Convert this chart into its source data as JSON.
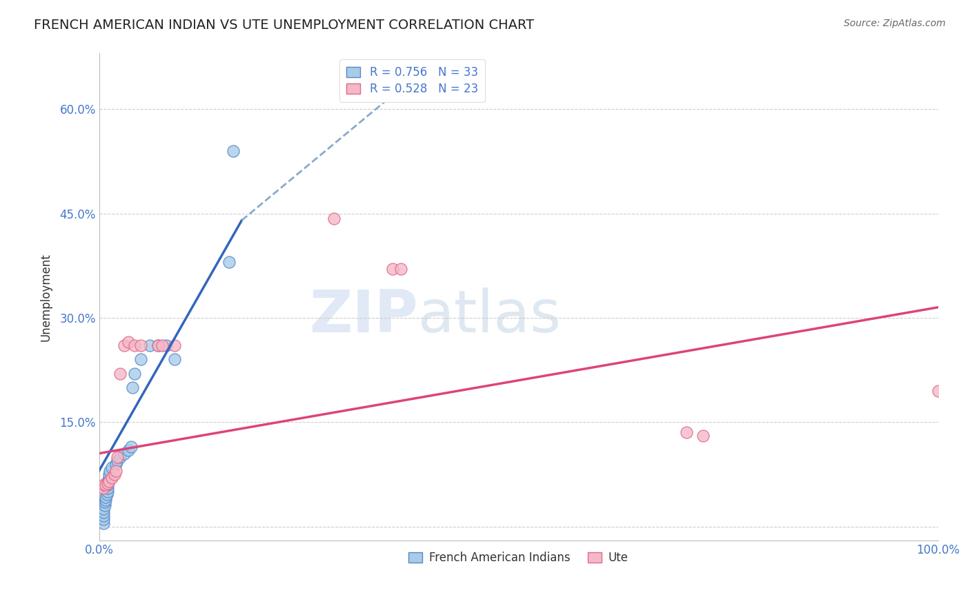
{
  "title": "FRENCH AMERICAN INDIAN VS UTE UNEMPLOYMENT CORRELATION CHART",
  "source": "Source: ZipAtlas.com",
  "ylabel": "Unemployment",
  "xlim": [
    0,
    1.0
  ],
  "ylim": [
    -0.02,
    0.68
  ],
  "xticks": [
    0.0,
    0.25,
    0.5,
    0.75,
    1.0
  ],
  "xtick_labels": [
    "0.0%",
    "",
    "",
    "",
    "100.0%"
  ],
  "ytick_positions": [
    0.0,
    0.15,
    0.3,
    0.45,
    0.6
  ],
  "ytick_labels": [
    "",
    "15.0%",
    "30.0%",
    "45.0%",
    "60.0%"
  ],
  "blue_R": "0.756",
  "blue_N": "33",
  "pink_R": "0.528",
  "pink_N": "23",
  "blue_color": "#a8cce8",
  "pink_color": "#f5b8c8",
  "blue_edge_color": "#5588cc",
  "pink_edge_color": "#e06888",
  "blue_line_color": "#3366bb",
  "pink_line_color": "#dd4477",
  "watermark_zip": "ZIP",
  "watermark_atlas": "atlas",
  "blue_scatter": [
    [
      0.005,
      0.005
    ],
    [
      0.005,
      0.01
    ],
    [
      0.005,
      0.015
    ],
    [
      0.005,
      0.02
    ],
    [
      0.005,
      0.025
    ],
    [
      0.007,
      0.03
    ],
    [
      0.007,
      0.035
    ],
    [
      0.008,
      0.038
    ],
    [
      0.008,
      0.042
    ],
    [
      0.009,
      0.046
    ],
    [
      0.01,
      0.05
    ],
    [
      0.01,
      0.055
    ],
    [
      0.01,
      0.06
    ],
    [
      0.01,
      0.065
    ],
    [
      0.012,
      0.07
    ],
    [
      0.012,
      0.075
    ],
    [
      0.013,
      0.08
    ],
    [
      0.015,
      0.085
    ],
    [
      0.02,
      0.09
    ],
    [
      0.022,
      0.095
    ],
    [
      0.025,
      0.1
    ],
    [
      0.03,
      0.105
    ],
    [
      0.035,
      0.11
    ],
    [
      0.038,
      0.115
    ],
    [
      0.04,
      0.2
    ],
    [
      0.042,
      0.22
    ],
    [
      0.05,
      0.24
    ],
    [
      0.06,
      0.26
    ],
    [
      0.07,
      0.26
    ],
    [
      0.08,
      0.26
    ],
    [
      0.09,
      0.24
    ],
    [
      0.155,
      0.38
    ],
    [
      0.16,
      0.54
    ]
  ],
  "pink_scatter": [
    [
      0.005,
      0.055
    ],
    [
      0.005,
      0.06
    ],
    [
      0.008,
      0.06
    ],
    [
      0.01,
      0.062
    ],
    [
      0.012,
      0.065
    ],
    [
      0.015,
      0.07
    ],
    [
      0.018,
      0.075
    ],
    [
      0.02,
      0.08
    ],
    [
      0.022,
      0.1
    ],
    [
      0.025,
      0.22
    ],
    [
      0.03,
      0.26
    ],
    [
      0.035,
      0.265
    ],
    [
      0.042,
      0.26
    ],
    [
      0.05,
      0.26
    ],
    [
      0.07,
      0.26
    ],
    [
      0.075,
      0.26
    ],
    [
      0.09,
      0.26
    ],
    [
      0.28,
      0.443
    ],
    [
      0.35,
      0.37
    ],
    [
      0.36,
      0.37
    ],
    [
      0.7,
      0.135
    ],
    [
      0.72,
      0.13
    ],
    [
      1.0,
      0.195
    ]
  ],
  "blue_line_solid": [
    [
      0.0,
      0.08
    ],
    [
      0.17,
      0.44
    ]
  ],
  "blue_line_dashed": [
    [
      0.17,
      0.44
    ],
    [
      0.38,
      0.65
    ]
  ],
  "pink_line": [
    [
      0.0,
      0.105
    ],
    [
      1.0,
      0.315
    ]
  ]
}
